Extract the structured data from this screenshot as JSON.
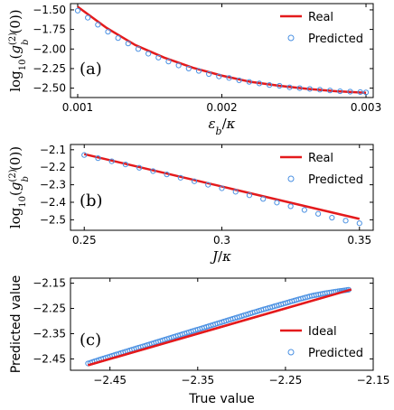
{
  "colors": {
    "real": "#e41a1c",
    "predicted": "#4a90e2",
    "axes": "#000000"
  },
  "chart_data": [
    {
      "type": "scatter",
      "panel": "(a)",
      "xlabel": "ε_b/κ",
      "ylabel": "log10(g_b^(2)(0))",
      "xlim": [
        0.00095,
        0.00305
      ],
      "ylim": [
        -2.62,
        -1.42
      ],
      "xticks": [
        0.001,
        0.002,
        0.003
      ],
      "xtick_labels": [
        "0.001",
        "0.002",
        "0.003"
      ],
      "yticks": [
        -1.5,
        -1.75,
        -2.0,
        -2.25,
        -2.5
      ],
      "ytick_labels": [
        "−1.50",
        "−1.75",
        "−2.00",
        "−2.25",
        "−2.50"
      ],
      "legend_position": "top-right",
      "series": [
        {
          "name": "Real",
          "style": "line",
          "x": [
            0.001,
            0.0012,
            0.0014,
            0.0016,
            0.0018,
            0.002,
            0.0022,
            0.0024,
            0.0026,
            0.0028,
            0.003
          ],
          "values": [
            -1.46,
            -1.73,
            -1.95,
            -2.11,
            -2.24,
            -2.34,
            -2.42,
            -2.47,
            -2.51,
            -2.54,
            -2.56
          ]
        },
        {
          "name": "Predicted",
          "style": "markers",
          "x": [
            0.001,
            0.00107,
            0.00114,
            0.00121,
            0.00128,
            0.00135,
            0.00142,
            0.00149,
            0.00156,
            0.00163,
            0.0017,
            0.00177,
            0.00184,
            0.00191,
            0.00198,
            0.00205,
            0.00212,
            0.00219,
            0.00226,
            0.00233,
            0.0024,
            0.00247,
            0.00254,
            0.00261,
            0.00268,
            0.00275,
            0.00282,
            0.00289,
            0.00296,
            0.003
          ],
          "values": [
            -1.51,
            -1.6,
            -1.69,
            -1.78,
            -1.86,
            -1.93,
            -2.0,
            -2.06,
            -2.11,
            -2.16,
            -2.21,
            -2.25,
            -2.28,
            -2.32,
            -2.35,
            -2.37,
            -2.4,
            -2.42,
            -2.44,
            -2.46,
            -2.47,
            -2.49,
            -2.5,
            -2.51,
            -2.52,
            -2.53,
            -2.54,
            -2.545,
            -2.55,
            -2.555
          ]
        }
      ]
    },
    {
      "type": "scatter",
      "panel": "(b)",
      "xlabel": "J/κ",
      "ylabel": "log10(g_b^(2)(0))",
      "xlim": [
        0.245,
        0.355
      ],
      "ylim": [
        -2.56,
        -2.07
      ],
      "xticks": [
        0.25,
        0.3,
        0.35
      ],
      "xtick_labels": [
        "0.25",
        "0.3",
        "0.35"
      ],
      "yticks": [
        -2.1,
        -2.2,
        -2.3,
        -2.4,
        -2.5
      ],
      "ytick_labels": [
        "−2.1",
        "−2.2",
        "−2.3",
        "−2.4",
        "−2.5"
      ],
      "legend_position": "top-right",
      "series": [
        {
          "name": "Real",
          "style": "line",
          "x": [
            0.25,
            0.35
          ],
          "values": [
            -2.125,
            -2.495
          ]
        },
        {
          "name": "Predicted",
          "style": "markers",
          "x": [
            0.25,
            0.255,
            0.26,
            0.265,
            0.27,
            0.275,
            0.28,
            0.285,
            0.29,
            0.295,
            0.3,
            0.305,
            0.31,
            0.315,
            0.32,
            0.325,
            0.33,
            0.335,
            0.34,
            0.345,
            0.35
          ],
          "values": [
            -2.13,
            -2.148,
            -2.166,
            -2.184,
            -2.203,
            -2.222,
            -2.241,
            -2.26,
            -2.28,
            -2.3,
            -2.32,
            -2.34,
            -2.36,
            -2.381,
            -2.402,
            -2.423,
            -2.444,
            -2.466,
            -2.488,
            -2.505,
            -2.52
          ]
        }
      ]
    },
    {
      "type": "scatter",
      "panel": "(c)",
      "xlabel": "True value",
      "ylabel": "Predicted value",
      "xlim": [
        -2.495,
        -2.15
      ],
      "ylim": [
        -2.495,
        -2.13
      ],
      "xticks": [
        -2.45,
        -2.35,
        -2.25,
        -2.15
      ],
      "xtick_labels": [
        "−2.45",
        "−2.35",
        "−2.25",
        "−2.15"
      ],
      "yticks": [
        -2.15,
        -2.25,
        -2.35,
        -2.45
      ],
      "ytick_labels": [
        "−2.15",
        "−2.25",
        "−2.35",
        "−2.45"
      ],
      "legend_position": "bottom-right",
      "series": [
        {
          "name": "Ideal",
          "style": "line",
          "x": [
            -2.475,
            -2.175
          ],
          "values": [
            -2.475,
            -2.175
          ]
        },
        {
          "name": "Predicted",
          "style": "markers",
          "x": [
            -2.475,
            -2.46,
            -2.445,
            -2.43,
            -2.415,
            -2.4,
            -2.385,
            -2.37,
            -2.355,
            -2.34,
            -2.325,
            -2.31,
            -2.295,
            -2.28,
            -2.265,
            -2.25,
            -2.235,
            -2.22,
            -2.205,
            -2.19,
            -2.178
          ],
          "values": [
            -2.468,
            -2.451,
            -2.435,
            -2.419,
            -2.403,
            -2.387,
            -2.371,
            -2.355,
            -2.339,
            -2.323,
            -2.307,
            -2.291,
            -2.275,
            -2.259,
            -2.244,
            -2.229,
            -2.214,
            -2.2,
            -2.19,
            -2.182,
            -2.176
          ]
        }
      ]
    }
  ]
}
